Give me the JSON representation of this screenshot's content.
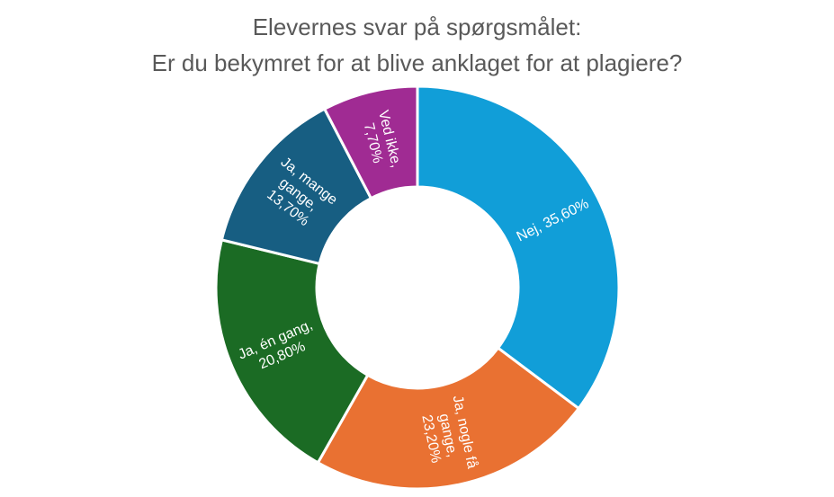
{
  "chart_data": {
    "type": "pie",
    "variant": "donut",
    "title_lines": [
      "Elevernes svar på spørgsmålet:",
      "Er du bekymret for at blive anklaget for at plagiere?"
    ],
    "slices": [
      {
        "label_lines": [
          "Nej, 35,60%"
        ],
        "value": 35.6,
        "color": "#119ED8"
      },
      {
        "label_lines": [
          "Ja, nogle få",
          "gange,",
          "23,20%"
        ],
        "value": 23.2,
        "color": "#E97132"
      },
      {
        "label_lines": [
          "Ja, én gang,",
          "20,80%"
        ],
        "value": 20.8,
        "color": "#1B6B24"
      },
      {
        "label_lines": [
          "Ja, mange",
          "gange,",
          "13,70%"
        ],
        "value": 13.7,
        "color": "#175E82"
      },
      {
        "label_lines": [
          "Ved ikke,",
          "7,70%"
        ],
        "value": 7.7,
        "color": "#A02B93"
      }
    ],
    "legend": "none"
  }
}
